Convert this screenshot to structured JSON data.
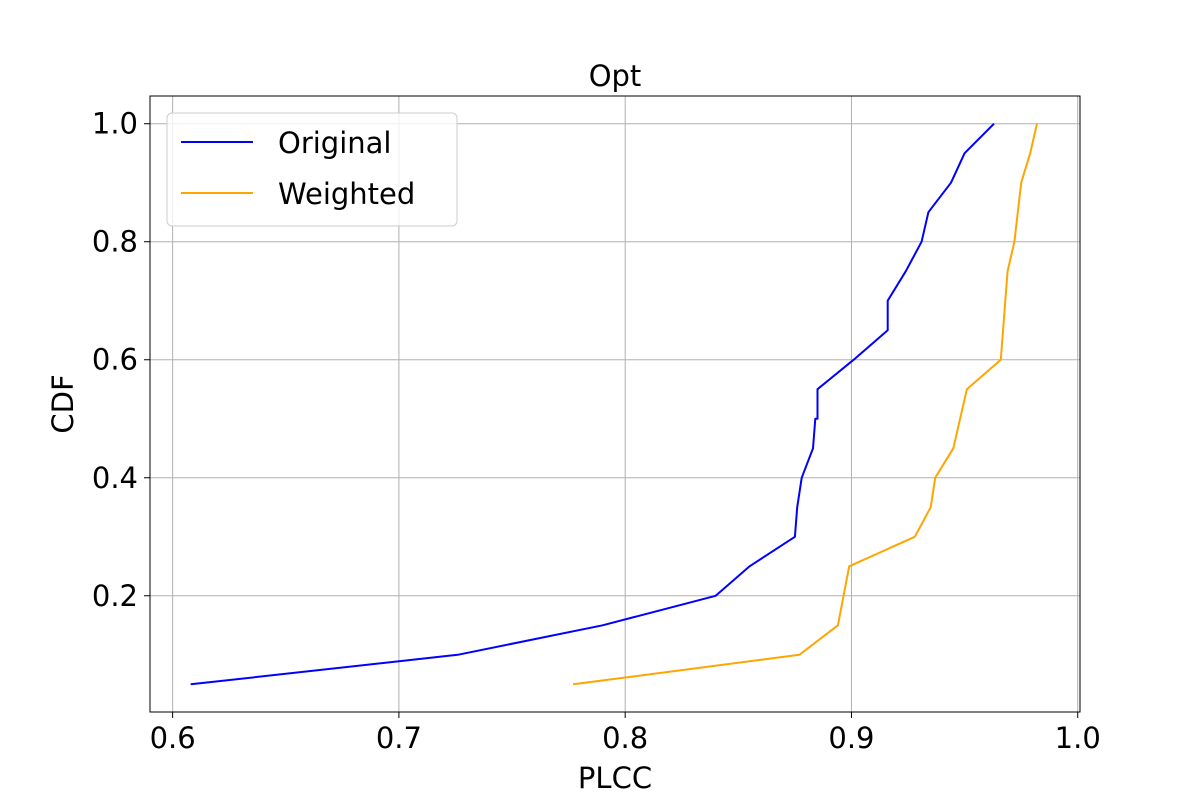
{
  "chart_data": {
    "type": "line",
    "title": "Opt",
    "xlabel": "PLCC",
    "ylabel": "CDF",
    "xlim": [
      0.59,
      1.001
    ],
    "ylim": [
      0.003,
      1.047
    ],
    "xticks": [
      0.6,
      0.7,
      0.8,
      0.9,
      1.0
    ],
    "xtick_labels": [
      "0.6",
      "0.7",
      "0.8",
      "0.9",
      "1.0"
    ],
    "yticks": [
      0.2,
      0.4,
      0.6,
      0.8,
      1.0
    ],
    "ytick_labels": [
      "0.2",
      "0.4",
      "0.6",
      "0.8",
      "1.0"
    ],
    "grid": true,
    "legend_position": "top-left",
    "series": [
      {
        "name": "Original",
        "color": "#0000ff",
        "x": [
          0.608,
          0.726,
          0.79,
          0.84,
          0.855,
          0.875,
          0.876,
          0.878,
          0.883,
          0.884,
          0.885,
          0.885,
          0.901,
          0.916,
          0.916,
          0.924,
          0.931,
          0.934,
          0.944,
          0.95,
          0.963
        ],
        "y": [
          0.05,
          0.1,
          0.15,
          0.2,
          0.25,
          0.3,
          0.35,
          0.4,
          0.45,
          0.5,
          0.5,
          0.55,
          0.6,
          0.65,
          0.7,
          0.75,
          0.8,
          0.85,
          0.9,
          0.95,
          1.0
        ]
      },
      {
        "name": "Weighted",
        "color": "#ffa500",
        "x": [
          0.777,
          0.877,
          0.894,
          0.899,
          0.928,
          0.935,
          0.937,
          0.945,
          0.951,
          0.966,
          0.968,
          0.969,
          0.972,
          0.975,
          0.979,
          0.982
        ],
        "y": [
          0.05,
          0.1,
          0.15,
          0.25,
          0.3,
          0.35,
          0.4,
          0.45,
          0.55,
          0.6,
          0.7,
          0.75,
          0.8,
          0.9,
          0.95,
          1.0
        ]
      }
    ]
  }
}
